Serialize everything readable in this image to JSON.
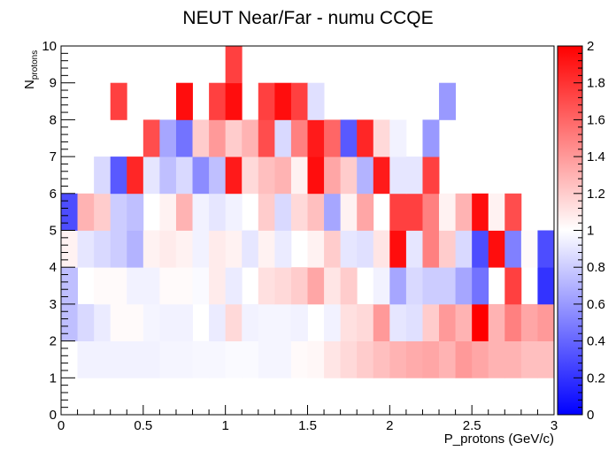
{
  "chart_data": {
    "type": "heatmap",
    "title": "NEUT Near/Far - numu CCQE",
    "xlabel": "P_protons (GeV/c)",
    "ylabel_main": "N",
    "ylabel_sub": "protons",
    "xlim": [
      0,
      3
    ],
    "ylim": [
      0,
      10
    ],
    "zlim": [
      0,
      2
    ],
    "x_bin_width": 0.1,
    "y_bin_width": 1,
    "x_ticks": [
      "0",
      "0.5",
      "1",
      "1.5",
      "2",
      "2.5",
      "3"
    ],
    "y_ticks": [
      "0",
      "1",
      "2",
      "3",
      "4",
      "5",
      "6",
      "7",
      "8",
      "9",
      "10"
    ],
    "z_ticks": [
      "0",
      "0.2",
      "0.4",
      "0.6",
      "0.8",
      "1",
      "1.2",
      "1.4",
      "1.6",
      "1.8",
      "2"
    ],
    "colorscale": [
      "#0000ff",
      "#ffffff",
      "#ff0000"
    ],
    "rows": [
      {
        "y_low": 0,
        "values": [
          1,
          1,
          1,
          1,
          1,
          1,
          1,
          1,
          1,
          1,
          1,
          1,
          1,
          1,
          1,
          1,
          1,
          1,
          1,
          1,
          1,
          1,
          1,
          1,
          1,
          1,
          1,
          1,
          1,
          1
        ]
      },
      {
        "y_low": 1,
        "values": [
          1,
          0.95,
          0.95,
          0.95,
          0.95,
          0.95,
          0.96,
          0.96,
          0.97,
          0.97,
          0.98,
          0.98,
          0.96,
          0.96,
          1.02,
          1.03,
          1.1,
          1.15,
          1.2,
          1.25,
          1.3,
          1.33,
          1.35,
          1.3,
          1.4,
          1.35,
          1.3,
          1.3,
          1.25,
          1.25
        ]
      },
      {
        "y_low": 2,
        "values": [
          0.75,
          0.85,
          0.92,
          1.02,
          1.02,
          0.96,
          0.95,
          0.95,
          1.0,
          0.92,
          1.15,
          0.95,
          0.96,
          0.96,
          0.95,
          1.0,
          0.95,
          1.12,
          1.15,
          1.4,
          0.9,
          0.88,
          1.2,
          1.4,
          1.3,
          2.0,
          1.3,
          1.5,
          1.35,
          1.4
        ]
      },
      {
        "y_low": 3,
        "values": [
          0.75,
          1.0,
          1.02,
          1.02,
          0.95,
          0.95,
          1.02,
          1.02,
          0.98,
          1.08,
          0.92,
          1.0,
          1.12,
          1.15,
          1.2,
          1.35,
          1.1,
          1.2,
          1.0,
          0.95,
          0.65,
          0.85,
          0.8,
          0.8,
          0.65,
          0.45,
          1.0,
          1.75,
          1.0,
          0.2
        ]
      },
      {
        "y_low": 4,
        "values": [
          1.05,
          0.9,
          0.85,
          0.8,
          0.7,
          1.05,
          1.08,
          1.05,
          0.95,
          1.08,
          1.05,
          0.9,
          1.05,
          0.92,
          1.0,
          1.05,
          1.2,
          0.9,
          0.88,
          1.1,
          1.95,
          0.9,
          1.5,
          1.2,
          0.85,
          0.3,
          1.95,
          0.5,
          1.02,
          0.3
        ]
      },
      {
        "y_low": 5,
        "values": [
          0.3,
          1.3,
          1.2,
          0.8,
          0.75,
          1.0,
          1.05,
          1.3,
          0.95,
          0.9,
          0.95,
          1.0,
          1.2,
          0.85,
          1.15,
          1.25,
          0.65,
          1.05,
          1.35,
          1.0,
          1.75,
          1.75,
          1.5,
          1.05,
          1.3,
          1.95,
          1.05,
          1.7,
          1.0,
          1.0
        ]
      },
      {
        "y_low": 6,
        "values": [
          1,
          1,
          0.85,
          0.35,
          1.85,
          0.9,
          0.75,
          0.85,
          0.55,
          0.75,
          1.9,
          1.15,
          1.25,
          1.3,
          1.05,
          1.95,
          1.35,
          1.2,
          0.7,
          1.9,
          0.9,
          0.9,
          1.75,
          1,
          1,
          1,
          1,
          1,
          1,
          1
        ]
      },
      {
        "y_low": 7,
        "values": [
          1,
          1,
          1,
          1,
          1,
          1.7,
          0.65,
          0.45,
          1.2,
          1.4,
          1.2,
          1.3,
          1.7,
          0.85,
          1.5,
          1.9,
          1.6,
          0.35,
          1.85,
          1.15,
          0.95,
          1.0,
          0.6,
          1,
          1,
          1,
          1,
          1,
          1,
          1
        ]
      },
      {
        "y_low": 8,
        "values": [
          1,
          1,
          1,
          1,
          1,
          1,
          1,
          1,
          1,
          1,
          1,
          1,
          1,
          1,
          1,
          1,
          1,
          1,
          1,
          1,
          1,
          1,
          1,
          1,
          1,
          1,
          1,
          1,
          1,
          1
        ]
      },
      {
        "y_low": 9,
        "values": [
          1,
          1,
          1,
          1,
          1,
          1,
          1,
          1,
          1,
          1,
          1,
          1,
          1,
          1,
          1,
          1,
          1,
          1,
          1,
          1,
          1,
          1,
          1,
          1,
          1,
          1,
          1,
          1,
          1,
          1
        ]
      }
    ],
    "extra_cells": [
      {
        "x_low": 0.3,
        "y_low": 8,
        "value": 1.75
      },
      {
        "x_low": 0.7,
        "y_low": 8,
        "value": 1.95
      },
      {
        "x_low": 0.9,
        "y_low": 8,
        "value": 1.75
      },
      {
        "x_low": 1.0,
        "y_low": 8,
        "value": 1.95
      },
      {
        "x_low": 1.2,
        "y_low": 8,
        "value": 1.75
      },
      {
        "x_low": 1.3,
        "y_low": 8,
        "value": 1.95
      },
      {
        "x_low": 1.4,
        "y_low": 8,
        "value": 1.75
      },
      {
        "x_low": 1.5,
        "y_low": 8,
        "value": 0.88
      },
      {
        "x_low": 2.3,
        "y_low": 8,
        "value": 0.6
      },
      {
        "x_low": 1.0,
        "y_low": 9,
        "value": 1.75
      }
    ]
  }
}
